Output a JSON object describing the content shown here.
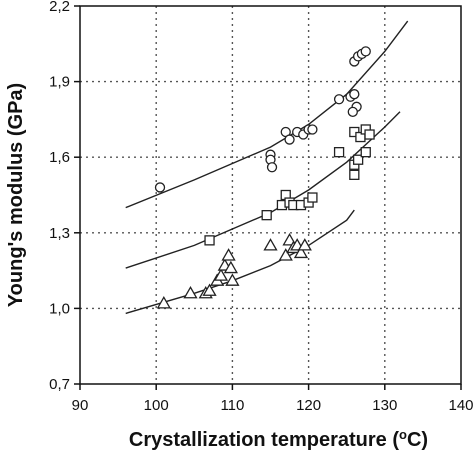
{
  "chart_data": {
    "type": "scatter",
    "xlabel_main": "Crystallization temperature (",
    "xlabel_sup": "o",
    "xlabel_end": "C)",
    "ylabel": "Young's modulus (GPa)",
    "xlim": [
      90,
      140
    ],
    "ylim": [
      0.7,
      2.2
    ],
    "x_ticks": [
      90,
      100,
      110,
      120,
      130,
      140
    ],
    "y_ticks": [
      0.7,
      1.0,
      1.3,
      1.6,
      1.9,
      2.2
    ],
    "x_tick_labels": [
      "90",
      "100",
      "110",
      "120",
      "130",
      "140"
    ],
    "y_tick_labels": [
      "0,7",
      "1,0",
      "1,3",
      "1,6",
      "1,9",
      "2,2"
    ],
    "grid": "dotted",
    "series": [
      {
        "marker": "circle",
        "points": [
          [
            100.5,
            1.48
          ],
          [
            115.0,
            1.61
          ],
          [
            115.0,
            1.59
          ],
          [
            115.2,
            1.56
          ],
          [
            117.0,
            1.7
          ],
          [
            117.5,
            1.67
          ],
          [
            118.5,
            1.7
          ],
          [
            119.3,
            1.69
          ],
          [
            120.0,
            1.71
          ],
          [
            120.5,
            1.71
          ],
          [
            124.0,
            1.83
          ],
          [
            125.5,
            1.84
          ],
          [
            126.0,
            1.85
          ],
          [
            126.3,
            1.8
          ],
          [
            125.8,
            1.78
          ],
          [
            126.0,
            1.98
          ],
          [
            126.5,
            2.0
          ],
          [
            127.0,
            2.01
          ],
          [
            127.5,
            2.02
          ]
        ],
        "fit": [
          [
            96,
            1.4
          ],
          [
            105,
            1.51
          ],
          [
            115,
            1.64
          ],
          [
            120,
            1.73
          ],
          [
            125,
            1.85
          ],
          [
            130,
            2.02
          ],
          [
            133,
            2.14
          ]
        ]
      },
      {
        "marker": "square",
        "points": [
          [
            107.0,
            1.27
          ],
          [
            114.5,
            1.37
          ],
          [
            116.5,
            1.41
          ],
          [
            117.0,
            1.45
          ],
          [
            117.5,
            1.42
          ],
          [
            118.0,
            1.41
          ],
          [
            119.0,
            1.41
          ],
          [
            120.0,
            1.42
          ],
          [
            120.5,
            1.44
          ],
          [
            124.0,
            1.62
          ],
          [
            126.0,
            1.53
          ],
          [
            126.0,
            1.57
          ],
          [
            126.5,
            1.59
          ],
          [
            126.0,
            1.7
          ],
          [
            126.8,
            1.68
          ],
          [
            127.5,
            1.71
          ],
          [
            128.0,
            1.69
          ],
          [
            127.5,
            1.62
          ]
        ],
        "fit": [
          [
            96,
            1.16
          ],
          [
            105,
            1.25
          ],
          [
            115,
            1.38
          ],
          [
            120,
            1.47
          ],
          [
            125,
            1.58
          ],
          [
            130,
            1.72
          ],
          [
            132,
            1.78
          ]
        ]
      },
      {
        "marker": "triangle",
        "points": [
          [
            101.0,
            1.02
          ],
          [
            104.5,
            1.06
          ],
          [
            106.5,
            1.06
          ],
          [
            107.0,
            1.07
          ],
          [
            108.0,
            1.11
          ],
          [
            108.5,
            1.13
          ],
          [
            109.0,
            1.17
          ],
          [
            109.5,
            1.21
          ],
          [
            109.8,
            1.16
          ],
          [
            110.0,
            1.11
          ],
          [
            115.0,
            1.25
          ],
          [
            117.0,
            1.21
          ],
          [
            117.5,
            1.27
          ],
          [
            118.0,
            1.24
          ],
          [
            118.5,
            1.25
          ],
          [
            119.0,
            1.22
          ],
          [
            119.5,
            1.25
          ]
        ],
        "fit": [
          [
            96,
            0.98
          ],
          [
            105,
            1.06
          ],
          [
            110,
            1.11
          ],
          [
            115,
            1.17
          ],
          [
            120,
            1.25
          ],
          [
            125,
            1.35
          ],
          [
            126,
            1.39
          ]
        ]
      }
    ]
  }
}
